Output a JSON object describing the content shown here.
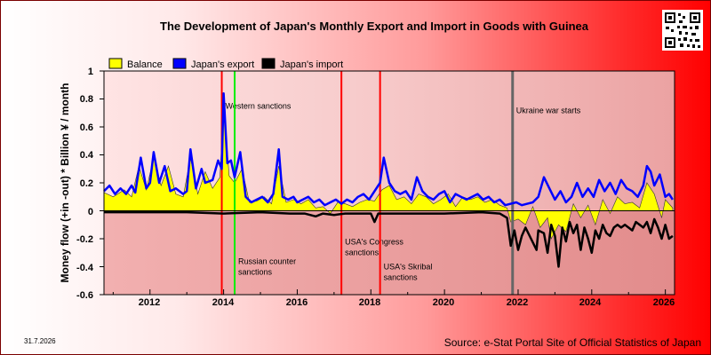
{
  "title": "The Development of Japan's Monthly Export and Import in Goods with Guinea",
  "date_label": "31.7.2026",
  "source_label": "Source: e-Stat Portal Site of Official Statistics of Japan",
  "colors": {
    "balance": "#ffff00",
    "export": "#0000ff",
    "import": "#000000",
    "sanction_line": "#ff0000",
    "highlight_line": "#00ee00",
    "war_line": "#666666"
  },
  "chart_data": {
    "type": "line",
    "title": "The Development of Japan's Monthly Export and Import in Goods with Guinea",
    "xlabel": "",
    "ylabel": "Money flow (+in -out) * Billion ¥ / month",
    "xlim": [
      2010.75,
      2026.25
    ],
    "ylim": [
      -0.6,
      1
    ],
    "yticks": [
      "1",
      "0.8",
      "0.6",
      "0.4",
      "0.2",
      "0",
      "-0.2",
      "-0.4",
      "-0.6"
    ],
    "xticks": [
      "2012",
      "2014",
      "2016",
      "2018",
      "2020",
      "2022",
      "2024",
      "2026"
    ],
    "grid": false,
    "legend_position": "top-left",
    "series": [
      {
        "name": "Balance",
        "points": [
          [
            2010.75,
            0.13
          ],
          [
            2011.0,
            0.1
          ],
          [
            2011.3,
            0.15
          ],
          [
            2011.5,
            0.1
          ],
          [
            2011.7,
            0.32
          ],
          [
            2011.9,
            0.15
          ],
          [
            2012.1,
            0.38
          ],
          [
            2012.3,
            0.18
          ],
          [
            2012.5,
            0.32
          ],
          [
            2012.7,
            0.12
          ],
          [
            2012.9,
            0.1
          ],
          [
            2013.1,
            0.38
          ],
          [
            2013.3,
            0.12
          ],
          [
            2013.5,
            0.28
          ],
          [
            2013.7,
            0.16
          ],
          [
            2013.9,
            0.24
          ],
          [
            2014.0,
            0.78
          ],
          [
            2014.15,
            0.25
          ],
          [
            2014.3,
            0.2
          ],
          [
            2014.5,
            0.3
          ],
          [
            2014.7,
            0.06
          ],
          [
            2014.9,
            0.07
          ],
          [
            2015.1,
            0.1
          ],
          [
            2015.3,
            0.05
          ],
          [
            2015.5,
            0.32
          ],
          [
            2015.7,
            0.06
          ],
          [
            2015.9,
            0.08
          ],
          [
            2016.1,
            0.05
          ],
          [
            2016.3,
            0.08
          ],
          [
            2016.5,
            0.02
          ],
          [
            2016.7,
            0.03
          ],
          [
            2016.9,
            -0.02
          ],
          [
            2017.1,
            0.06
          ],
          [
            2017.3,
            0.05
          ],
          [
            2017.5,
            0.03
          ],
          [
            2017.7,
            0.06
          ],
          [
            2017.9,
            0.08
          ],
          [
            2018.1,
            0.07
          ],
          [
            2018.3,
            0.15
          ],
          [
            2018.5,
            0.18
          ],
          [
            2018.7,
            0.08
          ],
          [
            2018.9,
            0.1
          ],
          [
            2019.1,
            0.05
          ],
          [
            2019.3,
            0.12
          ],
          [
            2019.5,
            0.1
          ],
          [
            2019.7,
            0.05
          ],
          [
            2019.9,
            0.08
          ],
          [
            2020.1,
            0.12
          ],
          [
            2020.3,
            0.03
          ],
          [
            2020.5,
            0.1
          ],
          [
            2020.7,
            0.08
          ],
          [
            2020.9,
            0.1
          ],
          [
            2021.1,
            0.06
          ],
          [
            2021.3,
            0.08
          ],
          [
            2021.5,
            0.04
          ],
          [
            2021.7,
            0.02
          ],
          [
            2021.8,
            -0.08
          ],
          [
            2022.0,
            -0.06
          ],
          [
            2022.2,
            -0.1
          ],
          [
            2022.4,
            0.03
          ],
          [
            2022.6,
            -0.12
          ],
          [
            2022.8,
            -0.05
          ],
          [
            2022.9,
            -0.2
          ],
          [
            2023.1,
            -0.1
          ],
          [
            2023.3,
            -0.15
          ],
          [
            2023.5,
            0.05
          ],
          [
            2023.7,
            -0.05
          ],
          [
            2023.9,
            0.04
          ],
          [
            2024.1,
            -0.1
          ],
          [
            2024.3,
            0.08
          ],
          [
            2024.5,
            -0.02
          ],
          [
            2024.7,
            0.1
          ],
          [
            2024.9,
            0.05
          ],
          [
            2025.1,
            0.06
          ],
          [
            2025.3,
            0.02
          ],
          [
            2025.5,
            0.2
          ],
          [
            2025.7,
            0.12
          ],
          [
            2025.9,
            -0.05
          ],
          [
            2026.0,
            0.08
          ],
          [
            2026.2,
            0.02
          ]
        ]
      },
      {
        "name": "Japan's export",
        "points": [
          [
            2010.75,
            0.14
          ],
          [
            2010.9,
            0.18
          ],
          [
            2011.05,
            0.12
          ],
          [
            2011.2,
            0.16
          ],
          [
            2011.35,
            0.12
          ],
          [
            2011.5,
            0.18
          ],
          [
            2011.6,
            0.13
          ],
          [
            2011.75,
            0.38
          ],
          [
            2011.9,
            0.16
          ],
          [
            2012.0,
            0.2
          ],
          [
            2012.1,
            0.42
          ],
          [
            2012.25,
            0.2
          ],
          [
            2012.4,
            0.32
          ],
          [
            2012.55,
            0.14
          ],
          [
            2012.7,
            0.16
          ],
          [
            2012.9,
            0.12
          ],
          [
            2013.0,
            0.14
          ],
          [
            2013.1,
            0.44
          ],
          [
            2013.25,
            0.16
          ],
          [
            2013.4,
            0.3
          ],
          [
            2013.5,
            0.2
          ],
          [
            2013.7,
            0.22
          ],
          [
            2013.85,
            0.36
          ],
          [
            2013.95,
            0.3
          ],
          [
            2014.0,
            0.84
          ],
          [
            2014.1,
            0.34
          ],
          [
            2014.2,
            0.36
          ],
          [
            2014.3,
            0.24
          ],
          [
            2014.45,
            0.42
          ],
          [
            2014.6,
            0.1
          ],
          [
            2014.75,
            0.06
          ],
          [
            2014.9,
            0.08
          ],
          [
            2015.05,
            0.1
          ],
          [
            2015.2,
            0.06
          ],
          [
            2015.35,
            0.12
          ],
          [
            2015.5,
            0.44
          ],
          [
            2015.6,
            0.1
          ],
          [
            2015.75,
            0.08
          ],
          [
            2015.9,
            0.1
          ],
          [
            2016.0,
            0.06
          ],
          [
            2016.15,
            0.08
          ],
          [
            2016.3,
            0.1
          ],
          [
            2016.45,
            0.06
          ],
          [
            2016.6,
            0.08
          ],
          [
            2016.75,
            0.04
          ],
          [
            2016.9,
            0.06
          ],
          [
            2017.05,
            0.08
          ],
          [
            2017.2,
            0.05
          ],
          [
            2017.35,
            0.08
          ],
          [
            2017.5,
            0.06
          ],
          [
            2017.65,
            0.1
          ],
          [
            2017.8,
            0.12
          ],
          [
            2017.95,
            0.08
          ],
          [
            2018.1,
            0.14
          ],
          [
            2018.25,
            0.2
          ],
          [
            2018.35,
            0.38
          ],
          [
            2018.5,
            0.2
          ],
          [
            2018.65,
            0.14
          ],
          [
            2018.8,
            0.12
          ],
          [
            2018.95,
            0.14
          ],
          [
            2019.1,
            0.08
          ],
          [
            2019.25,
            0.24
          ],
          [
            2019.4,
            0.14
          ],
          [
            2019.55,
            0.1
          ],
          [
            2019.7,
            0.08
          ],
          [
            2019.85,
            0.12
          ],
          [
            2020.0,
            0.14
          ],
          [
            2020.15,
            0.06
          ],
          [
            2020.3,
            0.12
          ],
          [
            2020.45,
            0.1
          ],
          [
            2020.6,
            0.08
          ],
          [
            2020.75,
            0.1
          ],
          [
            2020.9,
            0.12
          ],
          [
            2021.05,
            0.08
          ],
          [
            2021.2,
            0.1
          ],
          [
            2021.35,
            0.06
          ],
          [
            2021.5,
            0.08
          ],
          [
            2021.65,
            0.04
          ],
          [
            2021.8,
            0.05
          ],
          [
            2021.95,
            0.06
          ],
          [
            2022.1,
            0.04
          ],
          [
            2022.25,
            0.05
          ],
          [
            2022.4,
            0.06
          ],
          [
            2022.55,
            0.1
          ],
          [
            2022.7,
            0.24
          ],
          [
            2022.85,
            0.16
          ],
          [
            2023.0,
            0.08
          ],
          [
            2023.15,
            0.14
          ],
          [
            2023.3,
            0.06
          ],
          [
            2023.45,
            0.1
          ],
          [
            2023.6,
            0.2
          ],
          [
            2023.75,
            0.1
          ],
          [
            2023.9,
            0.16
          ],
          [
            2024.05,
            0.1
          ],
          [
            2024.2,
            0.22
          ],
          [
            2024.35,
            0.14
          ],
          [
            2024.5,
            0.2
          ],
          [
            2024.65,
            0.12
          ],
          [
            2024.8,
            0.22
          ],
          [
            2024.95,
            0.16
          ],
          [
            2025.1,
            0.14
          ],
          [
            2025.25,
            0.1
          ],
          [
            2025.4,
            0.18
          ],
          [
            2025.5,
            0.32
          ],
          [
            2025.6,
            0.28
          ],
          [
            2025.7,
            0.18
          ],
          [
            2025.85,
            0.26
          ],
          [
            2026.0,
            0.1
          ],
          [
            2026.1,
            0.12
          ],
          [
            2026.2,
            0.08
          ]
        ]
      },
      {
        "name": "Japan's import",
        "points": [
          [
            2010.75,
            -0.01
          ],
          [
            2012.0,
            -0.01
          ],
          [
            2013.0,
            -0.01
          ],
          [
            2014.0,
            -0.02
          ],
          [
            2015.0,
            -0.01
          ],
          [
            2015.8,
            -0.02
          ],
          [
            2016.2,
            -0.02
          ],
          [
            2016.5,
            -0.04
          ],
          [
            2016.7,
            -0.02
          ],
          [
            2017.0,
            -0.03
          ],
          [
            2017.3,
            -0.02
          ],
          [
            2017.6,
            -0.02
          ],
          [
            2018.0,
            -0.02
          ],
          [
            2018.1,
            -0.08
          ],
          [
            2018.2,
            -0.02
          ],
          [
            2019.0,
            -0.02
          ],
          [
            2020.0,
            -0.02
          ],
          [
            2021.0,
            -0.01
          ],
          [
            2021.5,
            -0.02
          ],
          [
            2021.7,
            -0.05
          ],
          [
            2021.8,
            -0.25
          ],
          [
            2021.9,
            -0.14
          ],
          [
            2022.0,
            -0.28
          ],
          [
            2022.1,
            -0.18
          ],
          [
            2022.2,
            -0.12
          ],
          [
            2022.35,
            -0.2
          ],
          [
            2022.5,
            -0.28
          ],
          [
            2022.55,
            -0.14
          ],
          [
            2022.7,
            -0.16
          ],
          [
            2022.8,
            -0.3
          ],
          [
            2022.9,
            -0.1
          ],
          [
            2023.0,
            -0.18
          ],
          [
            2023.1,
            -0.4
          ],
          [
            2023.2,
            -0.12
          ],
          [
            2023.3,
            -0.22
          ],
          [
            2023.4,
            -0.08
          ],
          [
            2023.5,
            -0.16
          ],
          [
            2023.6,
            -0.1
          ],
          [
            2023.7,
            -0.28
          ],
          [
            2023.8,
            -0.12
          ],
          [
            2023.9,
            -0.2
          ],
          [
            2024.0,
            -0.3
          ],
          [
            2024.1,
            -0.14
          ],
          [
            2024.2,
            -0.2
          ],
          [
            2024.3,
            -0.1
          ],
          [
            2024.4,
            -0.16
          ],
          [
            2024.5,
            -0.18
          ],
          [
            2024.6,
            -0.12
          ],
          [
            2024.7,
            -0.1
          ],
          [
            2024.8,
            -0.12
          ],
          [
            2024.9,
            -0.1
          ],
          [
            2025.0,
            -0.12
          ],
          [
            2025.1,
            -0.14
          ],
          [
            2025.2,
            -0.08
          ],
          [
            2025.3,
            -0.1
          ],
          [
            2025.4,
            -0.12
          ],
          [
            2025.5,
            -0.08
          ],
          [
            2025.6,
            -0.16
          ],
          [
            2025.7,
            -0.06
          ],
          [
            2025.8,
            -0.12
          ],
          [
            2025.9,
            -0.2
          ],
          [
            2026.0,
            -0.1
          ],
          [
            2026.1,
            -0.2
          ],
          [
            2026.2,
            -0.18
          ]
        ]
      }
    ],
    "annotations": [
      {
        "x": 2013.95,
        "color": "#ff0000",
        "label": "Western sanctions",
        "label_y": 0.73
      },
      {
        "x": 2014.3,
        "color": "#00ee00",
        "label": "Russian counter sanctions",
        "label_y": -0.38,
        "wrap": true
      },
      {
        "x": 2017.2,
        "color": "#ff0000",
        "label": "USA's Congress sanctions",
        "label_y": -0.24,
        "wrap": true
      },
      {
        "x": 2018.25,
        "color": "#ff0000",
        "label": "USA's Skribal sanctions",
        "label_y": -0.42,
        "wrap": true
      },
      {
        "x": 2021.85,
        "color": "#666666",
        "label": "Ukraine war starts",
        "label_y": 0.7
      }
    ]
  }
}
